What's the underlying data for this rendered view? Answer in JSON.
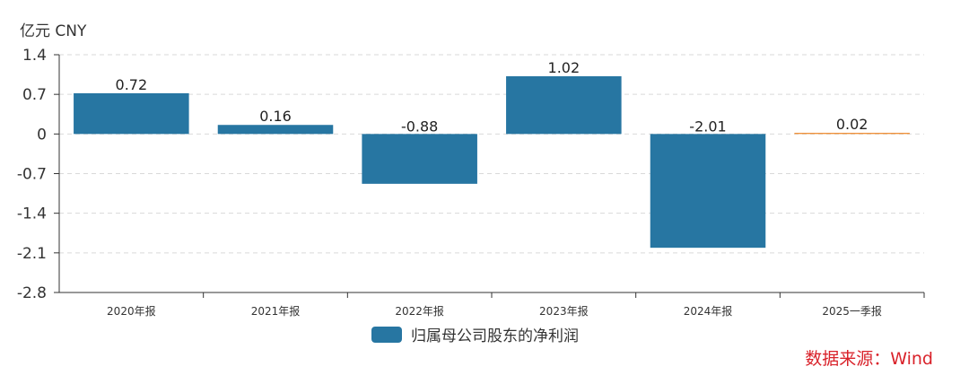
{
  "unit_label": "亿元  CNY",
  "source": "数据来源：Wind",
  "colors": {
    "bar": "#2776a2",
    "highlight": "#ee8a2e",
    "source": "#d9222a",
    "axis": "#333333",
    "grid": "#d9d9d9"
  },
  "chart_data": {
    "type": "bar",
    "categories": [
      "2020年报",
      "2021年报",
      "2022年报",
      "2023年报",
      "2024年报",
      "2025一季报"
    ],
    "series": [
      {
        "name": "归属母公司股东的净利润",
        "values": [
          0.72,
          0.16,
          -0.88,
          1.02,
          -2.01,
          0.02
        ]
      }
    ],
    "data_labels": [
      "0.72",
      "0.16",
      "-0.88",
      "1.02",
      "-2.01",
      "0.02"
    ],
    "highlight_index": 5,
    "yticks": [
      "1.4",
      "0.7",
      "0",
      "-0.7",
      "-1.4",
      "-2.1",
      "-2.8"
    ],
    "ylim": [
      -2.8,
      1.4
    ],
    "grid": true,
    "legend_position": "bottom-center"
  }
}
